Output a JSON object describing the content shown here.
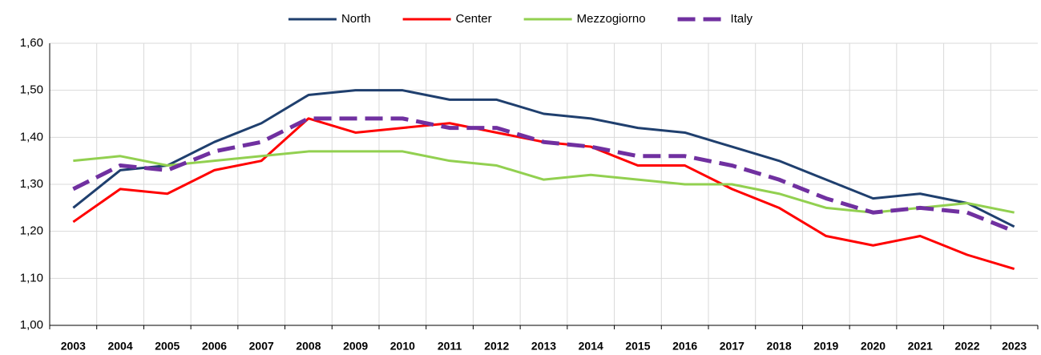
{
  "chart_data": {
    "type": "line",
    "categories": [
      "2003",
      "2004",
      "2005",
      "2006",
      "2007",
      "2008",
      "2009",
      "2010",
      "2011",
      "2012",
      "2013",
      "2014",
      "2015",
      "2016",
      "2017",
      "2018",
      "2019",
      "2020",
      "2021",
      "2022",
      "2023"
    ],
    "series": [
      {
        "name": "North",
        "color": "#1f3f6e",
        "values": [
          1.25,
          1.33,
          1.34,
          1.39,
          1.43,
          1.49,
          1.5,
          1.5,
          1.48,
          1.48,
          1.45,
          1.44,
          1.42,
          1.41,
          1.38,
          1.35,
          1.31,
          1.27,
          1.28,
          1.26,
          1.21
        ]
      },
      {
        "name": "Center",
        "color": "#ff0000",
        "values": [
          1.22,
          1.29,
          1.28,
          1.33,
          1.35,
          1.44,
          1.41,
          1.42,
          1.43,
          1.41,
          1.39,
          1.38,
          1.34,
          1.34,
          1.29,
          1.25,
          1.19,
          1.17,
          1.19,
          1.15,
          1.12
        ]
      },
      {
        "name": "Mezzogiorno",
        "color": "#92d050",
        "values": [
          1.35,
          1.36,
          1.34,
          1.35,
          1.36,
          1.37,
          1.37,
          1.37,
          1.35,
          1.34,
          1.31,
          1.32,
          1.31,
          1.3,
          1.3,
          1.28,
          1.25,
          1.24,
          1.25,
          1.26,
          1.24
        ]
      },
      {
        "name": "Italy",
        "color": "#7030a0",
        "dashed": true,
        "values": [
          1.29,
          1.34,
          1.33,
          1.37,
          1.39,
          1.44,
          1.44,
          1.44,
          1.42,
          1.42,
          1.39,
          1.38,
          1.36,
          1.36,
          1.34,
          1.31,
          1.27,
          1.24,
          1.25,
          1.24,
          1.2
        ]
      }
    ],
    "ylim": [
      1.0,
      1.6
    ],
    "yticks": [
      {
        "value": 1.0,
        "label": "1,00"
      },
      {
        "value": 1.1,
        "label": "1,10"
      },
      {
        "value": 1.2,
        "label": "1,20"
      },
      {
        "value": 1.3,
        "label": "1,30"
      },
      {
        "value": 1.4,
        "label": "1,40"
      },
      {
        "value": 1.5,
        "label": "1,50"
      },
      {
        "value": 1.6,
        "label": "1,60"
      }
    ],
    "grid": true,
    "legend": "top"
  }
}
